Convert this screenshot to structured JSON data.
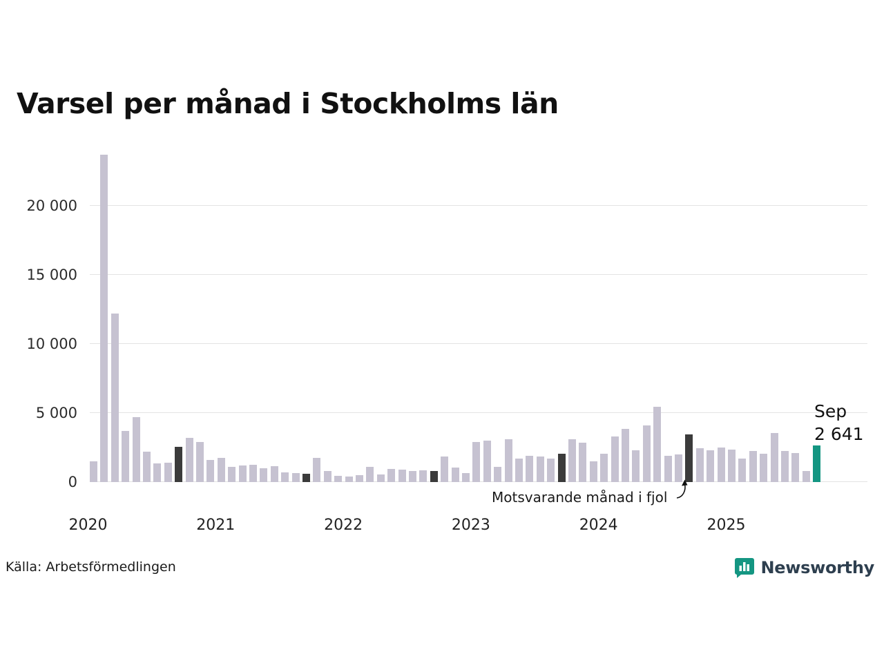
{
  "title": "Varsel per månad i Stockholms län",
  "source": "Källa: Arbetsförmedlingen",
  "annotation": "Motsvarande månad i fjol",
  "highlight_label": {
    "line1": "Sep",
    "line2": "2 641"
  },
  "brand": {
    "name": "Newsworthy",
    "accent_color": "#149682",
    "text_color": "#2e3f4f"
  },
  "colors": {
    "bar": "#c6c2d1",
    "bar_dark": "#3b3b3b",
    "bar_accent": "#149682",
    "grid": "#e3e3e3",
    "text": "#1a1a1a"
  },
  "chart_data": {
    "type": "bar",
    "title": "Varsel per månad i Stockholms län",
    "xlabel": "",
    "ylabel": "",
    "x_years": [
      "2020",
      "2021",
      "2022",
      "2023",
      "2024",
      "2025"
    ],
    "y_ticks": [
      "0",
      "5 000",
      "10 000",
      "15 000",
      "20 000"
    ],
    "y_tick_values": [
      0,
      5000,
      10000,
      15000,
      20000
    ],
    "ylim": [
      0,
      24000
    ],
    "grid": true,
    "legend_position": "none",
    "series": [
      {
        "name": "Varsel per månad",
        "start": "2020-01",
        "values": [
          1500,
          23700,
          12200,
          3700,
          4700,
          2200,
          1350,
          1400,
          2550,
          3200,
          2900,
          1600,
          1750,
          1100,
          1200,
          1250,
          1000,
          1150,
          700,
          650,
          600,
          1750,
          800,
          450,
          400,
          500,
          1100,
          550,
          950,
          900,
          800,
          850,
          800,
          1850,
          1050,
          650,
          2900,
          3000,
          1100,
          3100,
          1700,
          1900,
          1850,
          1700,
          2050,
          3100,
          2850,
          1500,
          2050,
          3300,
          3850,
          2300,
          4100,
          5450,
          1900,
          2000,
          3450,
          2450,
          2300,
          2500,
          2350,
          1700,
          2250,
          2050,
          3550,
          2250,
          2100,
          800,
          2641
        ]
      }
    ],
    "dark_indices": [
      8,
      20,
      32,
      44,
      56
    ],
    "dark_meaning": "Motsvarande månad i fjol (september respektive år)",
    "accent_index": 68,
    "accent_point": {
      "month": "Sep 2025",
      "value": 2641
    }
  }
}
